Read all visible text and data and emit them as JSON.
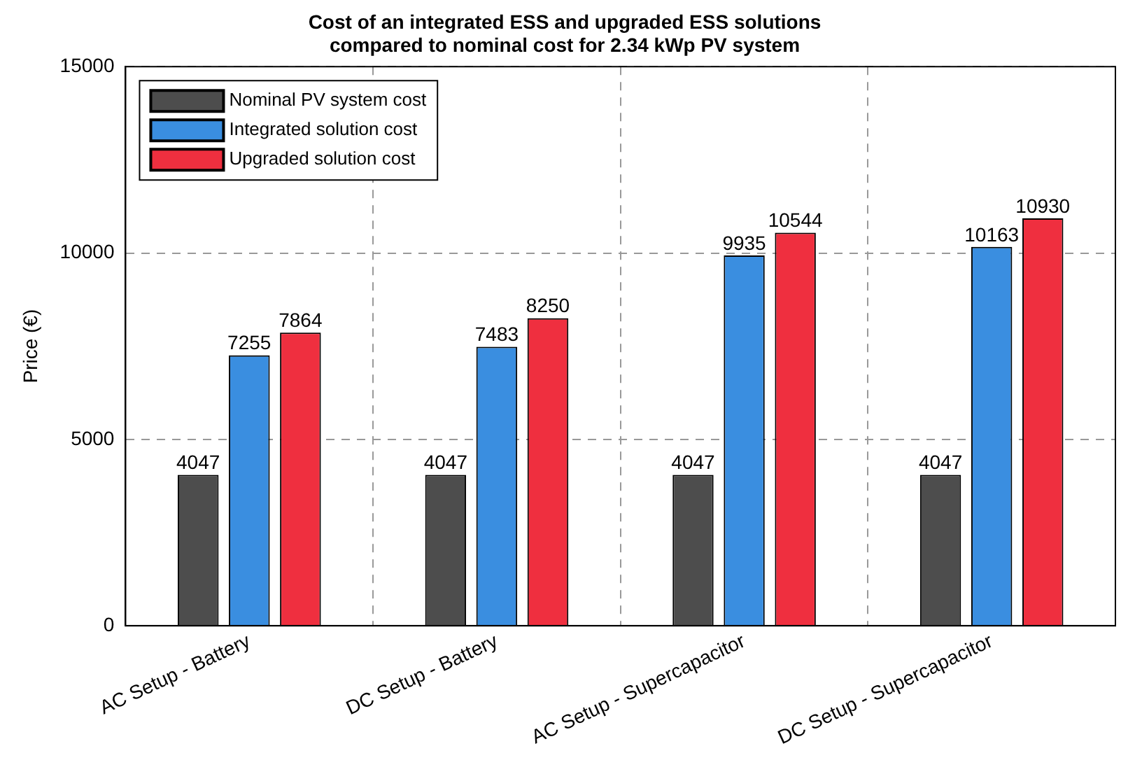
{
  "chart_data": {
    "type": "bar",
    "title": "Cost of an integrated ESS and upgraded ESS solutions\ncompared to nominal cost for 2.34 kWp PV system",
    "ylabel": "Price (€)",
    "categories": [
      "AC Setup - Battery",
      "DC Setup - Battery",
      "AC Setup - Supercapacitor",
      "DC Setup - Supercapacitor"
    ],
    "series": [
      {
        "name": "Nominal PV system cost",
        "color": "#4d4d4d",
        "values": [
          4047,
          4047,
          4047,
          4047
        ]
      },
      {
        "name": "Integrated solution cost",
        "color": "#3a8ee0",
        "values": [
          7255,
          7483,
          9935,
          10163
        ]
      },
      {
        "name": "Upgraded solution cost",
        "color": "#ef2f3f",
        "values": [
          7864,
          8250,
          10544,
          10930
        ]
      }
    ],
    "ylim": [
      0,
      15000
    ],
    "yticks": [
      0,
      5000,
      10000,
      15000
    ],
    "grid": true,
    "legend": "top left",
    "data_labels": true
  }
}
